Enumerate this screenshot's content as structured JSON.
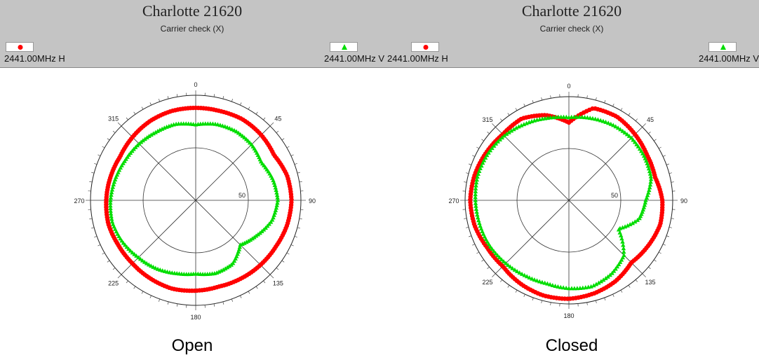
{
  "panels": [
    {
      "title": "Charlotte 21620",
      "subtitle": "Carrier check (X)",
      "legend": {
        "h_label": "2441.00MHz H",
        "v_label": "2441.00MHz V",
        "h_color": "#ff0000",
        "v_color": "#00dd00"
      },
      "caption": "Open"
    },
    {
      "title": "Charlotte 21620",
      "subtitle": "Carrier check (X)",
      "legend": {
        "h_label": "2441.00MHz H",
        "v_label": "2441.00MHz V",
        "h_color": "#ff0000",
        "v_color": "#00dd00"
      },
      "caption": "Closed"
    }
  ],
  "chart_data": [
    {
      "type": "polar",
      "title": "Charlotte 21620",
      "subtitle": "Carrier check (X)",
      "angle_ticks": [
        "0",
        "45",
        "90",
        "135",
        "180",
        "225",
        "270",
        "315"
      ],
      "radial_tick_label": "50",
      "radial_range": [
        0,
        100
      ],
      "grid": true,
      "series": [
        {
          "name": "2441.00MHz H",
          "color": "#ff0000",
          "marker": "circle",
          "angles": [
            0,
            15,
            30,
            45,
            60,
            75,
            90,
            105,
            120,
            135,
            150,
            165,
            180,
            195,
            210,
            225,
            240,
            255,
            270,
            285,
            300,
            315,
            330,
            345
          ],
          "radii": [
            88,
            88,
            89,
            88,
            86,
            90,
            91,
            90,
            88,
            87,
            86,
            85,
            86,
            87,
            86,
            85,
            85,
            86,
            85,
            84,
            83,
            85,
            87,
            88
          ]
        },
        {
          "name": "2441.00MHz V",
          "color": "#00dd00",
          "marker": "triangle",
          "angles": [
            0,
            15,
            30,
            45,
            60,
            75,
            90,
            105,
            120,
            135,
            150,
            165,
            180,
            195,
            210,
            225,
            240,
            255,
            270,
            285,
            300,
            315,
            330,
            345
          ],
          "radii": [
            72,
            75,
            76,
            75,
            72,
            76,
            78,
            75,
            67,
            60,
            70,
            72,
            70,
            72,
            75,
            77,
            80,
            82,
            81,
            79,
            77,
            76,
            75,
            75
          ]
        }
      ]
    },
    {
      "type": "polar",
      "title": "Charlotte 21620",
      "subtitle": "Carrier check (X)",
      "angle_ticks": [
        "0",
        "45",
        "90",
        "135",
        "180",
        "225",
        "270",
        "315"
      ],
      "radial_tick_label": "50",
      "radial_range": [
        0,
        100
      ],
      "grid": true,
      "series": [
        {
          "name": "2441.00MHz H",
          "color": "#ff0000",
          "marker": "circle",
          "angles": [
            0,
            15,
            30,
            45,
            60,
            75,
            90,
            105,
            120,
            135,
            150,
            165,
            180,
            195,
            210,
            225,
            240,
            255,
            270,
            285,
            300,
            315,
            330,
            345
          ],
          "radii": [
            75,
            92,
            93,
            90,
            87,
            86,
            90,
            91,
            88,
            85,
            90,
            93,
            95,
            95,
            93,
            90,
            91,
            94,
            95,
            94,
            92,
            90,
            91,
            85
          ]
        },
        {
          "name": "2441.00MHz V",
          "color": "#00dd00",
          "marker": "triangle",
          "angles": [
            0,
            15,
            30,
            45,
            60,
            75,
            90,
            105,
            120,
            135,
            150,
            165,
            180,
            195,
            210,
            225,
            240,
            255,
            270,
            285,
            300,
            315,
            330,
            345
          ],
          "radii": [
            80,
            82,
            84,
            85,
            84,
            82,
            74,
            70,
            55,
            75,
            82,
            86,
            85,
            83,
            84,
            86,
            88,
            89,
            90,
            91,
            90,
            88,
            85,
            82
          ]
        }
      ]
    }
  ]
}
